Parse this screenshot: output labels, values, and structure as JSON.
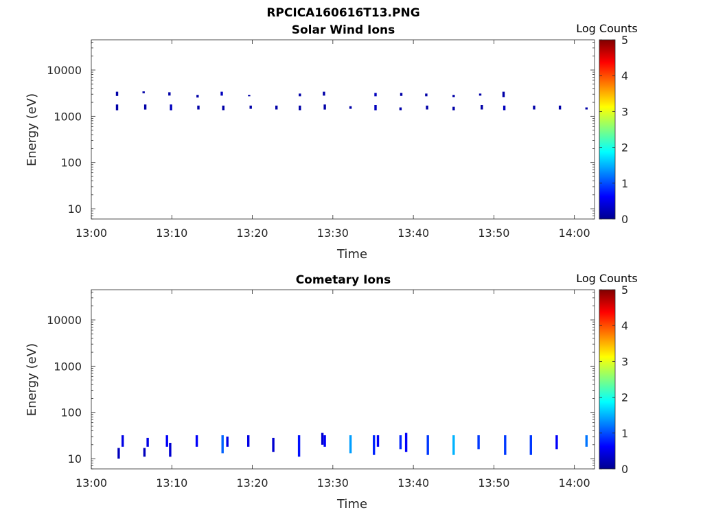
{
  "figure_title": "RPCICA160616T13.PNG",
  "chart_data": [
    {
      "type": "heatmap",
      "title": "Solar Wind Ions",
      "xlabel": "Time",
      "ylabel": "Energy (eV)",
      "x_ticks": [
        "13:00",
        "13:10",
        "13:20",
        "13:30",
        "13:40",
        "13:50",
        "14:00"
      ],
      "x_range_minutes": [
        0,
        62.5
      ],
      "y_scale": "log",
      "y_ticks": [
        "10",
        "100",
        "1000",
        "10000"
      ],
      "ylim": [
        6,
        45000
      ],
      "colorbar_label": "Log Counts",
      "colorbar_ticks": [
        "0",
        "1",
        "2",
        "3",
        "4",
        "5"
      ],
      "clim": [
        0,
        5
      ],
      "colormap": "jet",
      "grid": false,
      "cells": [
        {
          "t": 3.2,
          "e1": 2750,
          "e2": 3400,
          "v": 0.2
        },
        {
          "t": 3.2,
          "e1": 1350,
          "e2": 1800,
          "v": 0.2
        },
        {
          "t": 6.5,
          "e1": 3150,
          "e2": 3450,
          "v": 0.2
        },
        {
          "t": 6.7,
          "e1": 1400,
          "e2": 1800,
          "v": 0.2
        },
        {
          "t": 9.7,
          "e1": 2800,
          "e2": 3300,
          "v": 0.2
        },
        {
          "t": 9.9,
          "e1": 1350,
          "e2": 1800,
          "v": 0.3
        },
        {
          "t": 13.2,
          "e1": 2550,
          "e2": 2900,
          "v": 0.2
        },
        {
          "t": 13.3,
          "e1": 1400,
          "e2": 1700,
          "v": 0.2
        },
        {
          "t": 16.2,
          "e1": 2800,
          "e2": 3400,
          "v": 0.3
        },
        {
          "t": 16.4,
          "e1": 1350,
          "e2": 1700,
          "v": 0.2
        },
        {
          "t": 19.6,
          "e1": 2700,
          "e2": 2900,
          "v": 0.2
        },
        {
          "t": 19.8,
          "e1": 1450,
          "e2": 1700,
          "v": 0.2
        },
        {
          "t": 23.0,
          "e1": 1400,
          "e2": 1700,
          "v": 0.2
        },
        {
          "t": 25.9,
          "e1": 2700,
          "e2": 3100,
          "v": 0.2
        },
        {
          "t": 25.9,
          "e1": 1350,
          "e2": 1700,
          "v": 0.2
        },
        {
          "t": 28.9,
          "e1": 2800,
          "e2": 3400,
          "v": 0.2
        },
        {
          "t": 29.0,
          "e1": 1400,
          "e2": 1800,
          "v": 0.2
        },
        {
          "t": 32.2,
          "e1": 1450,
          "e2": 1650,
          "v": 0.2
        },
        {
          "t": 35.3,
          "e1": 2700,
          "e2": 3200,
          "v": 0.3
        },
        {
          "t": 35.3,
          "e1": 1350,
          "e2": 1750,
          "v": 0.3
        },
        {
          "t": 38.5,
          "e1": 2750,
          "e2": 3200,
          "v": 0.2
        },
        {
          "t": 38.4,
          "e1": 1350,
          "e2": 1550,
          "v": 0.2
        },
        {
          "t": 41.6,
          "e1": 2700,
          "e2": 3100,
          "v": 0.2
        },
        {
          "t": 41.7,
          "e1": 1400,
          "e2": 1700,
          "v": 0.2
        },
        {
          "t": 45.0,
          "e1": 2600,
          "e2": 2900,
          "v": 0.2
        },
        {
          "t": 45.0,
          "e1": 1350,
          "e2": 1600,
          "v": 0.2
        },
        {
          "t": 48.3,
          "e1": 2800,
          "e2": 3100,
          "v": 0.2
        },
        {
          "t": 48.5,
          "e1": 1400,
          "e2": 1750,
          "v": 0.2
        },
        {
          "t": 51.2,
          "e1": 2600,
          "e2": 3400,
          "v": 0.2
        },
        {
          "t": 51.3,
          "e1": 1350,
          "e2": 1700,
          "v": 0.3
        },
        {
          "t": 55.0,
          "e1": 1400,
          "e2": 1700,
          "v": 0.2
        },
        {
          "t": 58.2,
          "e1": 1400,
          "e2": 1700,
          "v": 0.2
        },
        {
          "t": 61.5,
          "e1": 1400,
          "e2": 1550,
          "v": 0.2
        }
      ]
    },
    {
      "type": "heatmap",
      "title": "Cometary Ions",
      "xlabel": "Time",
      "ylabel": "Energy (eV)",
      "x_ticks": [
        "13:00",
        "13:10",
        "13:20",
        "13:30",
        "13:40",
        "13:50",
        "14:00"
      ],
      "x_range_minutes": [
        0,
        62.5
      ],
      "y_scale": "log",
      "y_ticks": [
        "10",
        "100",
        "1000",
        "10000"
      ],
      "ylim": [
        6,
        45000
      ],
      "colorbar_label": "Log Counts",
      "colorbar_ticks": [
        "0",
        "1",
        "2",
        "3",
        "4",
        "5"
      ],
      "clim": [
        0,
        5
      ],
      "colormap": "jet",
      "grid": false,
      "cells": [
        {
          "t": 3.4,
          "e1": 10,
          "e2": 17,
          "v": 0.3
        },
        {
          "t": 3.9,
          "e1": 18,
          "e2": 32,
          "v": 0.5
        },
        {
          "t": 6.6,
          "e1": 11,
          "e2": 17,
          "v": 0.3
        },
        {
          "t": 7.0,
          "e1": 18,
          "e2": 28,
          "v": 0.5
        },
        {
          "t": 9.4,
          "e1": 18,
          "e2": 32,
          "v": 0.6
        },
        {
          "t": 9.8,
          "e1": 11,
          "e2": 22,
          "v": 0.4
        },
        {
          "t": 13.1,
          "e1": 18,
          "e2": 32,
          "v": 0.6
        },
        {
          "t": 16.3,
          "e1": 13,
          "e2": 32,
          "v": 1.1
        },
        {
          "t": 16.9,
          "e1": 18,
          "e2": 30,
          "v": 0.5
        },
        {
          "t": 19.5,
          "e1": 18,
          "e2": 32,
          "v": 0.5
        },
        {
          "t": 22.6,
          "e1": 14,
          "e2": 28,
          "v": 0.4
        },
        {
          "t": 25.8,
          "e1": 11,
          "e2": 32,
          "v": 0.7
        },
        {
          "t": 28.7,
          "e1": 20,
          "e2": 36,
          "v": 0.4
        },
        {
          "t": 29.0,
          "e1": 18,
          "e2": 32,
          "v": 0.6
        },
        {
          "t": 32.2,
          "e1": 13,
          "e2": 32,
          "v": 1.4
        },
        {
          "t": 35.1,
          "e1": 12,
          "e2": 32,
          "v": 0.8
        },
        {
          "t": 35.6,
          "e1": 18,
          "e2": 32,
          "v": 0.6
        },
        {
          "t": 38.4,
          "e1": 16,
          "e2": 32,
          "v": 0.8
        },
        {
          "t": 39.1,
          "e1": 14,
          "e2": 36,
          "v": 0.6
        },
        {
          "t": 41.8,
          "e1": 12,
          "e2": 32,
          "v": 0.9
        },
        {
          "t": 45.0,
          "e1": 12,
          "e2": 32,
          "v": 1.5
        },
        {
          "t": 48.1,
          "e1": 16,
          "e2": 32,
          "v": 0.9
        },
        {
          "t": 51.4,
          "e1": 12,
          "e2": 32,
          "v": 0.9
        },
        {
          "t": 54.6,
          "e1": 12,
          "e2": 32,
          "v": 0.9
        },
        {
          "t": 57.8,
          "e1": 16,
          "e2": 32,
          "v": 0.6
        },
        {
          "t": 61.5,
          "e1": 18,
          "e2": 32,
          "v": 1.2
        }
      ]
    }
  ]
}
